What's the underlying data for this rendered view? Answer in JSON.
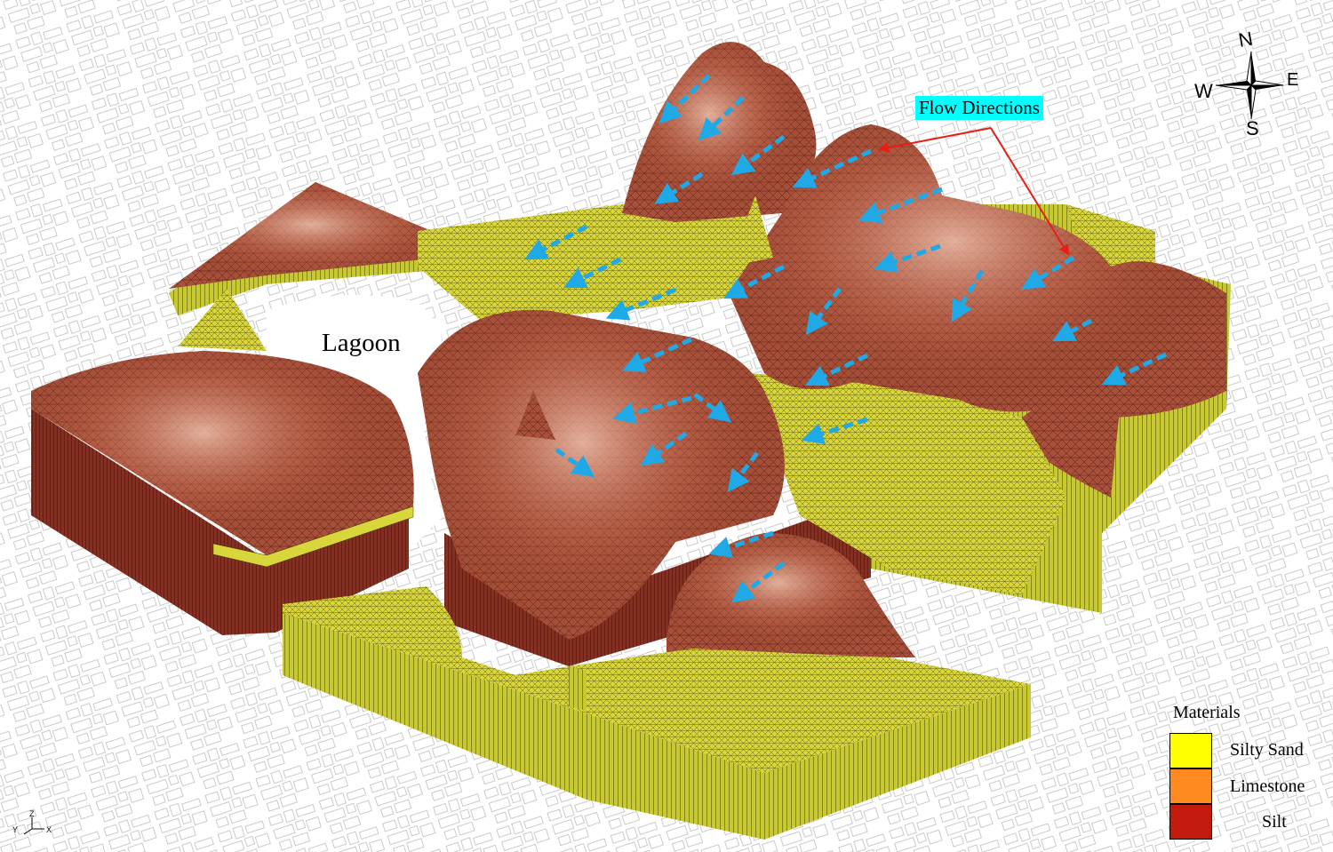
{
  "labels": {
    "lagoon": "Lagoon",
    "flow_directions": "Flow Directions"
  },
  "compass": {
    "n": "N",
    "e": "E",
    "s": "S",
    "w": "W"
  },
  "axis_triad": {
    "z": "Z",
    "y": "Y",
    "x": "X"
  },
  "legend": {
    "title": "Materials",
    "items": [
      {
        "label": "Silty Sand",
        "color": "#ffff00"
      },
      {
        "label": "Limestone",
        "color": "#ff8a1f"
      },
      {
        "label": "Silt",
        "color": "#c21a0d"
      }
    ]
  },
  "colors": {
    "silt_surface": "#a8503a",
    "silt_wall": "#8a2d1e",
    "sand_surface": "#d8d63a",
    "sand_wall": "#c8c832",
    "flow_arrow": "#1fa9e6",
    "callout_arrow": "#e61e14"
  }
}
